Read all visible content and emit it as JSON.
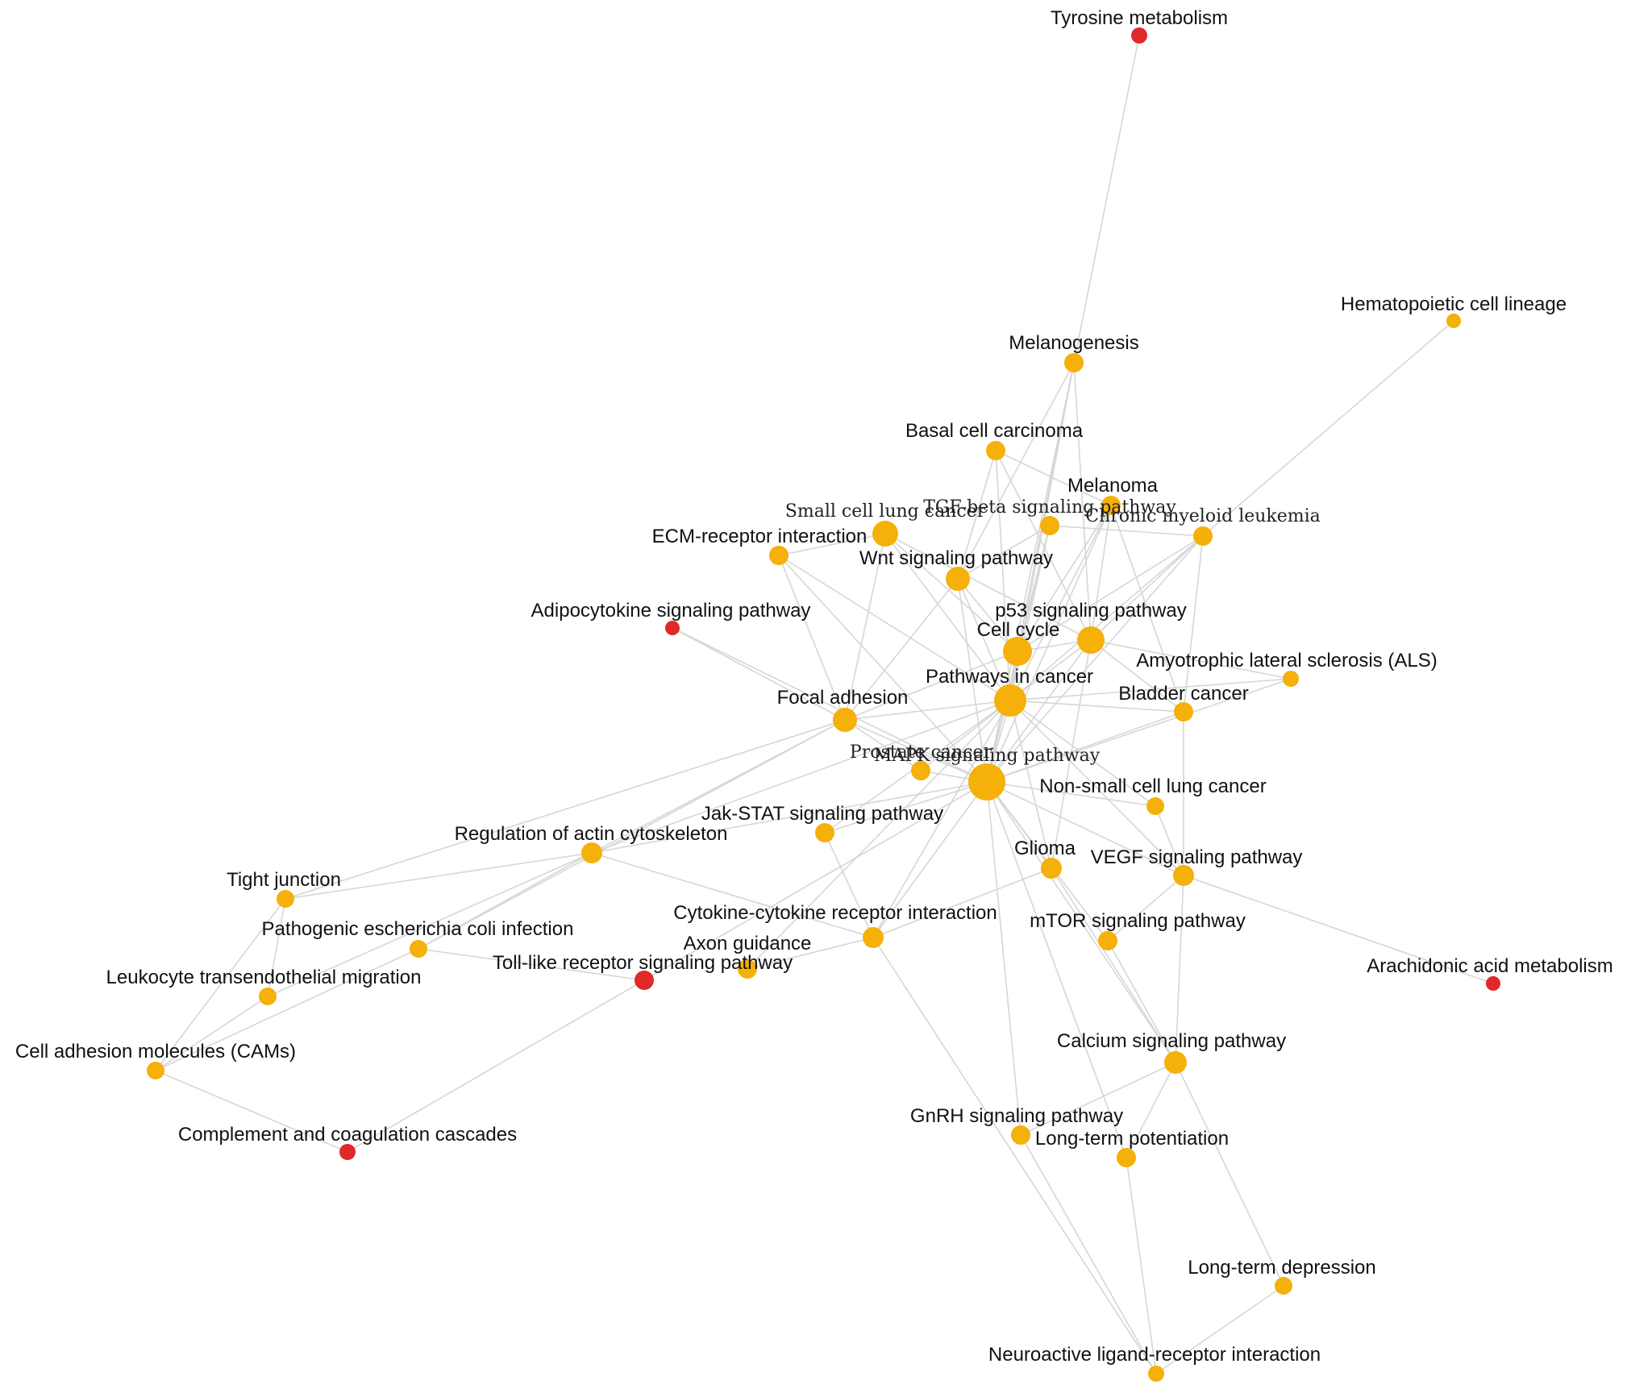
{
  "colors": {
    "orange": "#f5b009",
    "red": "#e02a2a",
    "edge": "#d6d6d6"
  },
  "nodes": [
    {
      "id": "tyrosine",
      "label": "Tyrosine metabolism",
      "color": "red"
    },
    {
      "id": "hematopoietic",
      "label": "Hematopoietic cell lineage",
      "color": "orange"
    },
    {
      "id": "melanogenesis",
      "label": "Melanogenesis",
      "color": "orange"
    },
    {
      "id": "basal",
      "label": "Basal cell carcinoma",
      "color": "orange"
    },
    {
      "id": "melanoma",
      "label": "Melanoma",
      "color": "orange"
    },
    {
      "id": "tgfb",
      "label": "TGF-beta signaling pathway",
      "color": "orange"
    },
    {
      "id": "cml",
      "label": "Chronic myeloid leukemia",
      "color": "orange"
    },
    {
      "id": "sclc",
      "label": "Small cell lung cancer",
      "color": "orange"
    },
    {
      "id": "ecm",
      "label": "ECM-receptor interaction",
      "color": "orange"
    },
    {
      "id": "wnt",
      "label": "Wnt signaling pathway",
      "color": "orange"
    },
    {
      "id": "adipo",
      "label": "Adipocytokine signaling pathway",
      "color": "red"
    },
    {
      "id": "p53",
      "label": "p53 signaling pathway",
      "color": "orange"
    },
    {
      "id": "cellcycle",
      "label": "Cell cycle",
      "color": "orange"
    },
    {
      "id": "als",
      "label": "Amyotrophic lateral sclerosis (ALS)",
      "color": "orange"
    },
    {
      "id": "pic",
      "label": "Pathways in cancer",
      "color": "orange"
    },
    {
      "id": "bladder",
      "label": "Bladder cancer",
      "color": "orange"
    },
    {
      "id": "focal",
      "label": "Focal adhesion",
      "color": "orange"
    },
    {
      "id": "prostate",
      "label": "Prostate cancer",
      "color": "orange"
    },
    {
      "id": "mapk",
      "label": "MAPK signaling pathway",
      "color": "orange"
    },
    {
      "id": "nsclc",
      "label": "Non-small cell lung cancer",
      "color": "orange"
    },
    {
      "id": "jakstat",
      "label": "Jak-STAT signaling pathway",
      "color": "orange"
    },
    {
      "id": "actin",
      "label": "Regulation of actin cytoskeleton",
      "color": "orange"
    },
    {
      "id": "glioma",
      "label": "Glioma",
      "color": "orange"
    },
    {
      "id": "vegf",
      "label": "VEGF signaling pathway",
      "color": "orange"
    },
    {
      "id": "tight",
      "label": "Tight junction",
      "color": "orange"
    },
    {
      "id": "cytokine",
      "label": "Cytokine-cytokine receptor interaction",
      "color": "orange"
    },
    {
      "id": "mtor",
      "label": "mTOR signaling pathway",
      "color": "orange"
    },
    {
      "id": "ecoli",
      "label": "Pathogenic escherichia coli infection",
      "color": "orange"
    },
    {
      "id": "axon",
      "label": "Axon guidance",
      "color": "orange"
    },
    {
      "id": "tlr",
      "label": "Toll-like receptor signaling pathway",
      "color": "red"
    },
    {
      "id": "arachidonic",
      "label": "Arachidonic acid metabolism",
      "color": "red"
    },
    {
      "id": "leukocyte",
      "label": "Leukocyte transendothelial migration",
      "color": "orange"
    },
    {
      "id": "calcium",
      "label": "Calcium signaling pathway",
      "color": "orange"
    },
    {
      "id": "cams",
      "label": "Cell adhesion molecules (CAMs)",
      "color": "orange"
    },
    {
      "id": "complement",
      "label": "Complement and coagulation cascades",
      "color": "red"
    },
    {
      "id": "gnrh",
      "label": "GnRH signaling pathway",
      "color": "orange"
    },
    {
      "id": "ltp",
      "label": "Long-term potentiation",
      "color": "orange"
    },
    {
      "id": "ltd",
      "label": "Long-term depression",
      "color": "orange"
    },
    {
      "id": "neuro",
      "label": "Neuroactive ligand-receptor interaction",
      "color": "orange"
    }
  ],
  "edges": [
    [
      "tyrosine",
      "melanogenesis"
    ],
    [
      "hematopoietic",
      "cml"
    ],
    [
      "melanogenesis",
      "wnt"
    ],
    [
      "melanogenesis",
      "mapk"
    ],
    [
      "melanogenesis",
      "pic"
    ],
    [
      "melanogenesis",
      "cellcycle"
    ],
    [
      "melanogenesis",
      "p53"
    ],
    [
      "basal",
      "wnt"
    ],
    [
      "basal",
      "pic"
    ],
    [
      "basal",
      "p53"
    ],
    [
      "basal",
      "melanoma"
    ],
    [
      "melanoma",
      "pic"
    ],
    [
      "melanoma",
      "mapk"
    ],
    [
      "melanoma",
      "cellcycle"
    ],
    [
      "melanoma",
      "p53"
    ],
    [
      "melanoma",
      "bladder"
    ],
    [
      "tgfb",
      "wnt"
    ],
    [
      "tgfb",
      "mapk"
    ],
    [
      "tgfb",
      "cellcycle"
    ],
    [
      "tgfb",
      "pic"
    ],
    [
      "tgfb",
      "cml"
    ],
    [
      "cml",
      "pic"
    ],
    [
      "cml",
      "cellcycle"
    ],
    [
      "cml",
      "p53"
    ],
    [
      "cml",
      "mapk"
    ],
    [
      "cml",
      "bladder"
    ],
    [
      "sclc",
      "pic"
    ],
    [
      "sclc",
      "focal"
    ],
    [
      "sclc",
      "ecm"
    ],
    [
      "sclc",
      "cellcycle"
    ],
    [
      "sclc",
      "p53"
    ],
    [
      "ecm",
      "focal"
    ],
    [
      "ecm",
      "pic"
    ],
    [
      "ecm",
      "mapk"
    ],
    [
      "wnt",
      "pic"
    ],
    [
      "wnt",
      "mapk"
    ],
    [
      "wnt",
      "focal"
    ],
    [
      "wnt",
      "cellcycle"
    ],
    [
      "adipo",
      "mapk"
    ],
    [
      "adipo",
      "focal"
    ],
    [
      "p53",
      "cellcycle"
    ],
    [
      "p53",
      "pic"
    ],
    [
      "p53",
      "mapk"
    ],
    [
      "p53",
      "bladder"
    ],
    [
      "p53",
      "glioma"
    ],
    [
      "cellcycle",
      "pic"
    ],
    [
      "cellcycle",
      "mapk"
    ],
    [
      "cellcycle",
      "focal"
    ],
    [
      "als",
      "mapk"
    ],
    [
      "als",
      "pic"
    ],
    [
      "als",
      "p53"
    ],
    [
      "pic",
      "mapk"
    ],
    [
      "pic",
      "focal"
    ],
    [
      "pic",
      "bladder"
    ],
    [
      "pic",
      "prostate"
    ],
    [
      "pic",
      "nsclc"
    ],
    [
      "pic",
      "glioma"
    ],
    [
      "pic",
      "vegf"
    ],
    [
      "pic",
      "jakstat"
    ],
    [
      "pic",
      "cytokine"
    ],
    [
      "pic",
      "actin"
    ],
    [
      "pic",
      "axon"
    ],
    [
      "bladder",
      "mapk"
    ],
    [
      "bladder",
      "vegf"
    ],
    [
      "focal",
      "mapk"
    ],
    [
      "focal",
      "actin"
    ],
    [
      "focal",
      "tight"
    ],
    [
      "focal",
      "prostate"
    ],
    [
      "focal",
      "ecoli"
    ],
    [
      "prostate",
      "mapk"
    ],
    [
      "mapk",
      "nsclc"
    ],
    [
      "mapk",
      "glioma"
    ],
    [
      "mapk",
      "vegf"
    ],
    [
      "mapk",
      "mtor"
    ],
    [
      "mapk",
      "jakstat"
    ],
    [
      "mapk",
      "cytokine"
    ],
    [
      "mapk",
      "calcium"
    ],
    [
      "mapk",
      "gnrh"
    ],
    [
      "mapk",
      "ltp"
    ],
    [
      "mapk",
      "tlr"
    ],
    [
      "mapk",
      "actin"
    ],
    [
      "nsclc",
      "vegf"
    ],
    [
      "jakstat",
      "cytokine"
    ],
    [
      "actin",
      "tight"
    ],
    [
      "actin",
      "ecoli"
    ],
    [
      "actin",
      "leukocyte"
    ],
    [
      "actin",
      "cytokine"
    ],
    [
      "glioma",
      "cytokine"
    ],
    [
      "glioma",
      "calcium"
    ],
    [
      "vegf",
      "mtor"
    ],
    [
      "vegf",
      "arachidonic"
    ],
    [
      "vegf",
      "calcium"
    ],
    [
      "tight",
      "leukocyte"
    ],
    [
      "tight",
      "cams"
    ],
    [
      "cytokine",
      "neuro"
    ],
    [
      "cytokine",
      "axon"
    ],
    [
      "mtor",
      "calcium"
    ],
    [
      "ecoli",
      "tlr"
    ],
    [
      "ecoli",
      "cams"
    ],
    [
      "tlr",
      "complement"
    ],
    [
      "leukocyte",
      "cams"
    ],
    [
      "calcium",
      "gnrh"
    ],
    [
      "calcium",
      "ltp"
    ],
    [
      "calcium",
      "ltd"
    ],
    [
      "cams",
      "complement"
    ],
    [
      "gnrh",
      "neuro"
    ],
    [
      "ltp",
      "neuro"
    ],
    [
      "ltd",
      "neuro"
    ]
  ]
}
